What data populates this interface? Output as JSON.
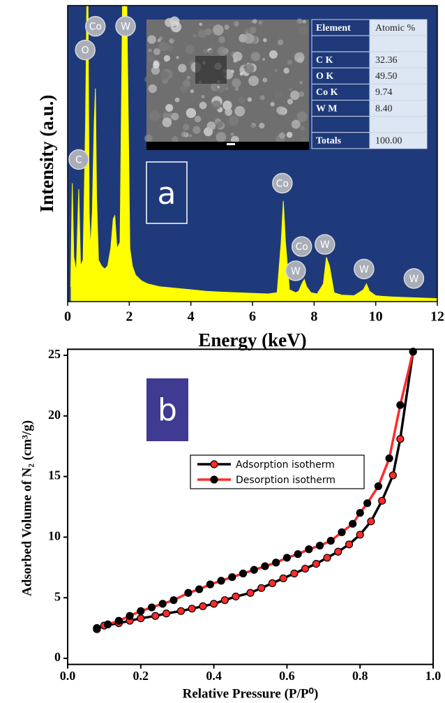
{
  "chart_data": [
    {
      "type": "area",
      "panel_label": "a",
      "xlabel": "Energy (keV)",
      "ylabel": "Intensity (a.u.)",
      "color": "#ffff00",
      "background": "#1f3a7a",
      "xlim": [
        0,
        12
      ],
      "xticks": [
        0,
        2,
        4,
        6,
        8,
        10,
        12
      ],
      "ylim": [
        0,
        100
      ],
      "x": [
        0.1,
        0.15,
        0.2,
        0.28,
        0.36,
        0.42,
        0.5,
        0.58,
        0.62,
        0.66,
        0.7,
        0.74,
        0.8,
        0.86,
        0.9,
        0.94,
        1.0,
        1.1,
        1.2,
        1.3,
        1.4,
        1.48,
        1.53,
        1.6,
        1.7,
        1.78,
        1.82,
        1.86,
        1.92,
        1.97,
        2.02,
        2.1,
        2.2,
        2.4,
        2.6,
        3.0,
        3.5,
        4.0,
        4.5,
        5.0,
        5.5,
        6.0,
        6.5,
        6.8,
        6.93,
        7.0,
        7.07,
        7.2,
        7.4,
        7.5,
        7.6,
        7.68,
        7.76,
        7.9,
        8.1,
        8.3,
        8.4,
        8.5,
        8.65,
        8.9,
        9.3,
        9.6,
        9.7,
        9.8,
        10.0,
        10.2,
        10.5,
        11.0,
        11.5,
        12.0
      ],
      "values": [
        5,
        40,
        15,
        10,
        38,
        12,
        14,
        60,
        100,
        100,
        30,
        18,
        30,
        60,
        72,
        35,
        14,
        12,
        11,
        12,
        18,
        28,
        29,
        18,
        20,
        100,
        100,
        100,
        100,
        60,
        18,
        12,
        9,
        7,
        6,
        5,
        4.5,
        4,
        3.5,
        3.2,
        3,
        2.8,
        2.6,
        3,
        20,
        34,
        20,
        4,
        3,
        3.5,
        6,
        7.5,
        5,
        3,
        2.6,
        6,
        15,
        12,
        3,
        2.2,
        2,
        4,
        6,
        3.5,
        2,
        1.8,
        1.6,
        1.4,
        1.2,
        1
      ],
      "annotations": [
        {
          "text": "C",
          "x": 0.36,
          "y": 48
        },
        {
          "text": "O",
          "x": 0.57,
          "y": 85
        },
        {
          "text": "Co",
          "x": 0.9,
          "y": 93
        },
        {
          "text": "W",
          "x": 1.88,
          "y": 93
        },
        {
          "text": "Co",
          "x": 6.97,
          "y": 40
        },
        {
          "text": "W",
          "x": 7.4,
          "y": 10.4
        },
        {
          "text": "Co",
          "x": 7.6,
          "y": 18.6
        },
        {
          "text": "W",
          "x": 8.35,
          "y": 19.3
        },
        {
          "text": "W",
          "x": 9.62,
          "y": 11
        },
        {
          "text": "W",
          "x": 11.24,
          "y": 7.8
        }
      ]
    },
    {
      "type": "line",
      "panel_label": "b",
      "xlabel": "Relative Pressure (P/P⁰)",
      "ylabel": "Adsorbed Volume of N₂ (cm³/g)",
      "xlim": [
        0,
        1
      ],
      "ylim": [
        -0.5,
        25.5
      ],
      "xticks": [
        {
          "value": 0,
          "label": "0.0"
        },
        0.2,
        0.4,
        0.6,
        0.8,
        {
          "value": 1,
          "label": "1.0"
        }
      ],
      "yticks": [
        0,
        5,
        10,
        15,
        20,
        25
      ],
      "series": [
        {
          "name": "Adsorption isotherm",
          "color": "#000000",
          "marker_color": "#ff2a2a",
          "x": [
            0.08,
            0.1,
            0.14,
            0.17,
            0.2,
            0.24,
            0.27,
            0.31,
            0.34,
            0.37,
            0.4,
            0.43,
            0.46,
            0.5,
            0.53,
            0.56,
            0.59,
            0.62,
            0.65,
            0.68,
            0.71,
            0.74,
            0.77,
            0.8,
            0.83,
            0.86,
            0.89,
            0.91,
            0.945
          ],
          "values": [
            2.4,
            2.7,
            2.9,
            3.1,
            3.3,
            3.5,
            3.7,
            3.9,
            4.1,
            4.3,
            4.5,
            4.8,
            5.1,
            5.4,
            5.8,
            6.2,
            6.6,
            7.0,
            7.4,
            7.8,
            8.3,
            8.8,
            9.4,
            10.2,
            11.3,
            13.0,
            15.1,
            18.1,
            25.3
          ]
        },
        {
          "name": "Desorption isotherm",
          "color": "#ff2a2a",
          "marker_color": "#000000",
          "x": [
            0.08,
            0.11,
            0.14,
            0.17,
            0.2,
            0.23,
            0.26,
            0.29,
            0.33,
            0.36,
            0.39,
            0.42,
            0.45,
            0.48,
            0.51,
            0.54,
            0.57,
            0.6,
            0.63,
            0.66,
            0.69,
            0.72,
            0.75,
            0.78,
            0.8,
            0.82,
            0.85,
            0.88,
            0.91,
            0.945
          ],
          "values": [
            2.5,
            2.8,
            3.1,
            3.5,
            3.9,
            4.2,
            4.5,
            4.8,
            5.4,
            5.7,
            6.1,
            6.4,
            6.7,
            7.0,
            7.3,
            7.6,
            7.9,
            8.3,
            8.6,
            9.0,
            9.3,
            9.7,
            10.4,
            11.1,
            12.0,
            12.8,
            14.2,
            16.5,
            20.9,
            25.3
          ]
        }
      ]
    }
  ],
  "table": {
    "header": [
      "Element",
      "Atomic %"
    ],
    "rows": [
      [
        "C K",
        "32.36"
      ],
      [
        "O K",
        "49.50"
      ],
      [
        "Co K",
        "9.74"
      ],
      [
        "W M",
        "8.40"
      ],
      [
        "Totals",
        "100.00"
      ]
    ]
  }
}
